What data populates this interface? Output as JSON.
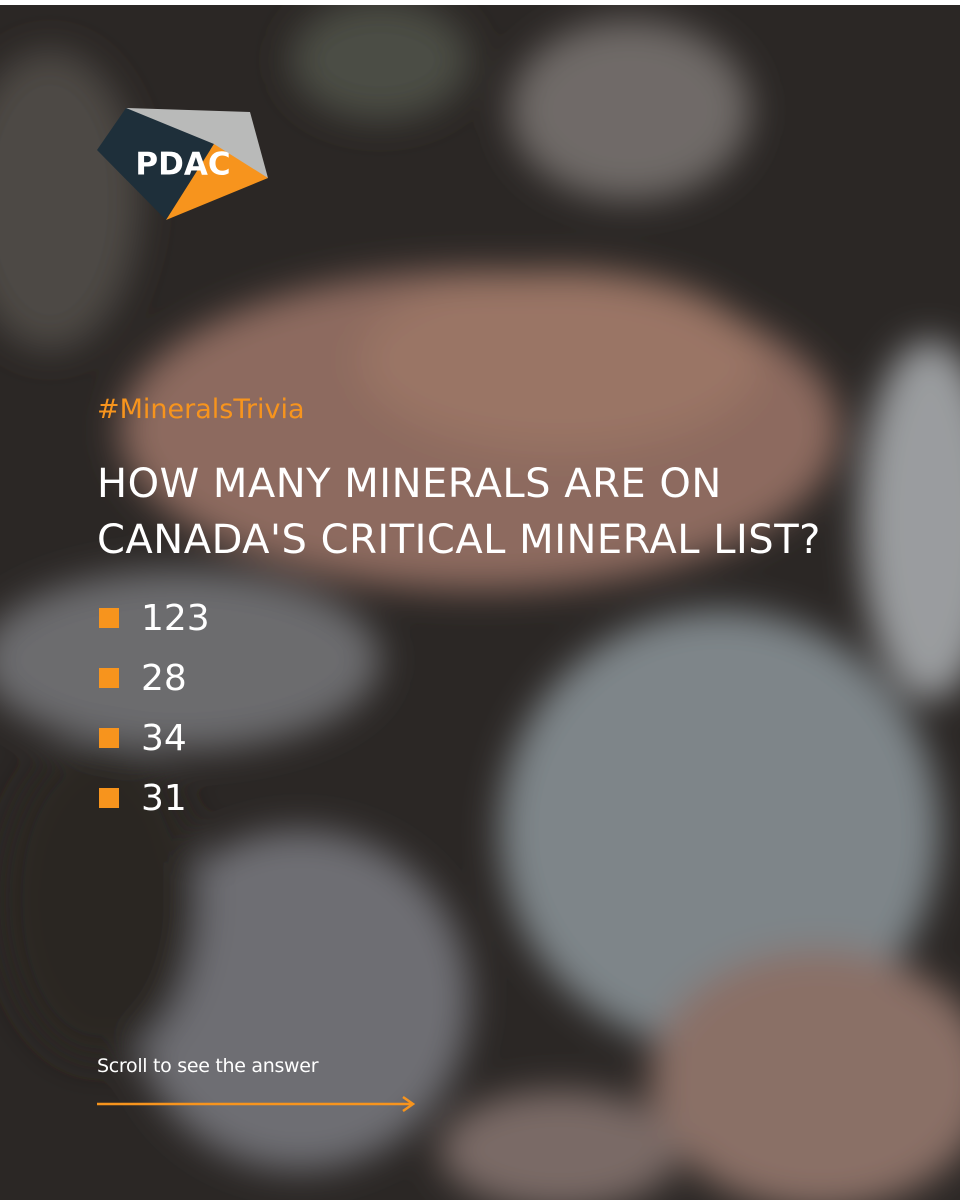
{
  "logo": {
    "text": "PDAC"
  },
  "hashtag": "#MineralsTrivia",
  "question": {
    "lines": [
      "HOW MANY MINERALS ARE ON",
      "CANADA'S CRITICAL MINERAL LIST?"
    ]
  },
  "options": [
    "123",
    "28",
    "34",
    "31"
  ],
  "footer": {
    "text": "Scroll to see the answer"
  }
}
